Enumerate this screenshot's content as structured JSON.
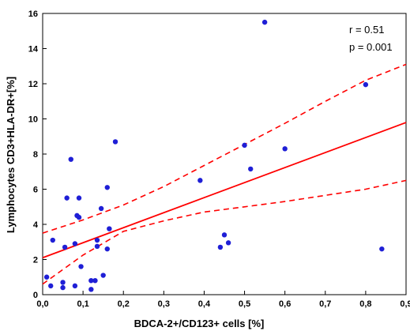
{
  "chart_data": {
    "type": "scatter",
    "xlabel": "BDCA-2+/CD123+ cells [%]",
    "ylabel": "Lymphocytes CD3+HLA-DR+[%]",
    "xlim": [
      0,
      0.9
    ],
    "ylim": [
      0,
      16
    ],
    "x_ticks": [
      "0,0",
      "0,1",
      "0,2",
      "0,3",
      "0,4",
      "0,5",
      "0,6",
      "0,7",
      "0,8",
      "0,9"
    ],
    "y_ticks": [
      "0",
      "2",
      "4",
      "6",
      "8",
      "10",
      "12",
      "14",
      "16"
    ],
    "annotations": [
      "r = 0.51",
      "p = 0.001"
    ],
    "grid": false,
    "colors": {
      "points": "#1f1fd6",
      "fit": "#ff0000"
    },
    "regression": {
      "intercept": 2.1,
      "slope": 8.55
    },
    "confidence_band": {
      "upper": [
        [
          0,
          3.5
        ],
        [
          0.1,
          4.25
        ],
        [
          0.2,
          5.1
        ],
        [
          0.3,
          6.15
        ],
        [
          0.4,
          7.35
        ],
        [
          0.5,
          8.55
        ],
        [
          0.6,
          9.75
        ],
        [
          0.7,
          11.0
        ],
        [
          0.8,
          12.2
        ],
        [
          0.9,
          13.1
        ]
      ],
      "lower": [
        [
          0,
          0.6
        ],
        [
          0.1,
          2.25
        ],
        [
          0.2,
          3.6
        ],
        [
          0.3,
          4.2
        ],
        [
          0.4,
          4.7
        ],
        [
          0.5,
          5.0
        ],
        [
          0.6,
          5.3
        ],
        [
          0.7,
          5.65
        ],
        [
          0.8,
          6.0
        ],
        [
          0.9,
          6.5
        ]
      ]
    },
    "points": [
      {
        "x": 0.01,
        "y": 1.0
      },
      {
        "x": 0.02,
        "y": 0.5
      },
      {
        "x": 0.025,
        "y": 3.1
      },
      {
        "x": 0.05,
        "y": 0.7
      },
      {
        "x": 0.05,
        "y": 0.4
      },
      {
        "x": 0.055,
        "y": 2.7
      },
      {
        "x": 0.06,
        "y": 5.5
      },
      {
        "x": 0.07,
        "y": 7.7
      },
      {
        "x": 0.08,
        "y": 0.5
      },
      {
        "x": 0.08,
        "y": 2.9
      },
      {
        "x": 0.085,
        "y": 4.5
      },
      {
        "x": 0.09,
        "y": 4.4
      },
      {
        "x": 0.09,
        "y": 5.5
      },
      {
        "x": 0.095,
        "y": 1.6
      },
      {
        "x": 0.12,
        "y": 0.3
      },
      {
        "x": 0.12,
        "y": 0.8
      },
      {
        "x": 0.13,
        "y": 0.8
      },
      {
        "x": 0.135,
        "y": 3.1
      },
      {
        "x": 0.135,
        "y": 2.75
      },
      {
        "x": 0.145,
        "y": 4.9
      },
      {
        "x": 0.15,
        "y": 1.1
      },
      {
        "x": 0.16,
        "y": 6.1
      },
      {
        "x": 0.16,
        "y": 2.6
      },
      {
        "x": 0.165,
        "y": 3.75
      },
      {
        "x": 0.18,
        "y": 8.7
      },
      {
        "x": 0.39,
        "y": 6.5
      },
      {
        "x": 0.44,
        "y": 2.7
      },
      {
        "x": 0.45,
        "y": 3.4
      },
      {
        "x": 0.46,
        "y": 2.95
      },
      {
        "x": 0.5,
        "y": 8.5
      },
      {
        "x": 0.515,
        "y": 7.15
      },
      {
        "x": 0.55,
        "y": 15.5
      },
      {
        "x": 0.6,
        "y": 8.3
      },
      {
        "x": 0.8,
        "y": 11.95
      },
      {
        "x": 0.84,
        "y": 2.6
      }
    ]
  }
}
